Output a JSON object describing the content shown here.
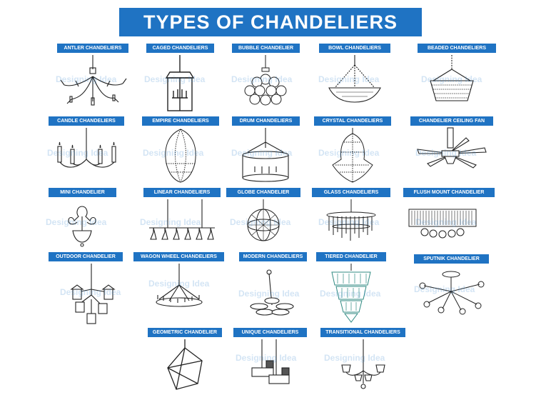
{
  "title": "TYPES OF CHANDELIERS",
  "watermark": "Designing Idea",
  "accent_color": "#1f73c3",
  "items": [
    {
      "label": "ANTLER CHANDELIERS",
      "icon": "antler-chandelier-icon"
    },
    {
      "label": "CAGED CHANDELIERS",
      "icon": "caged-chandelier-icon"
    },
    {
      "label": "BUBBLE CHANDELIER",
      "icon": "bubble-chandelier-icon"
    },
    {
      "label": "BOWL CHANDELIERS",
      "icon": "bowl-chandelier-icon"
    },
    {
      "label": "BEADED CHANDELIERS",
      "icon": "beaded-chandelier-icon"
    },
    {
      "label": "CANDLE CHANDELIERS",
      "icon": "candle-chandelier-icon"
    },
    {
      "label": "EMPIRE CHANDELIERS",
      "icon": "empire-chandelier-icon"
    },
    {
      "label": "DRUM CHANDELIERS",
      "icon": "drum-chandelier-icon"
    },
    {
      "label": "CRYSTAL CHANDELIERS",
      "icon": "crystal-chandelier-icon"
    },
    {
      "label": "CHANDELIER CEILING FAN",
      "icon": "ceiling-fan-chandelier-icon"
    },
    {
      "label": "MINI CHANDELIER",
      "icon": "mini-chandelier-icon"
    },
    {
      "label": "LINEAR CHANDELIERS",
      "icon": "linear-chandelier-icon"
    },
    {
      "label": "GLOBE CHANDELIER",
      "icon": "globe-chandelier-icon"
    },
    {
      "label": "GLASS CHANDELIERS",
      "icon": "glass-chandelier-icon"
    },
    {
      "label": "FLUSH MOUNT CHANDELIER",
      "icon": "flush-mount-chandelier-icon"
    },
    {
      "label": "OUTDOOR CHANDELIER",
      "icon": "outdoor-chandelier-icon"
    },
    {
      "label": "WAGON WHEEL CHANDELIERS",
      "icon": "wagon-wheel-chandelier-icon"
    },
    {
      "label": "MODERN CHANDELIERS",
      "icon": "modern-chandelier-icon"
    },
    {
      "label": "TIERED CHANDELIER",
      "icon": "tiered-chandelier-icon"
    },
    {
      "label": "SPUTNIK CHANDELIER",
      "icon": "sputnik-chandelier-icon"
    },
    {
      "label": "GEOMETRIC CHANDELIER",
      "icon": "geometric-chandelier-icon"
    },
    {
      "label": "UNIQUE CHANDELIERS",
      "icon": "unique-chandelier-icon"
    },
    {
      "label": "TRANSITIONAL CHANDELIERS",
      "icon": "transitional-chandelier-icon"
    }
  ]
}
